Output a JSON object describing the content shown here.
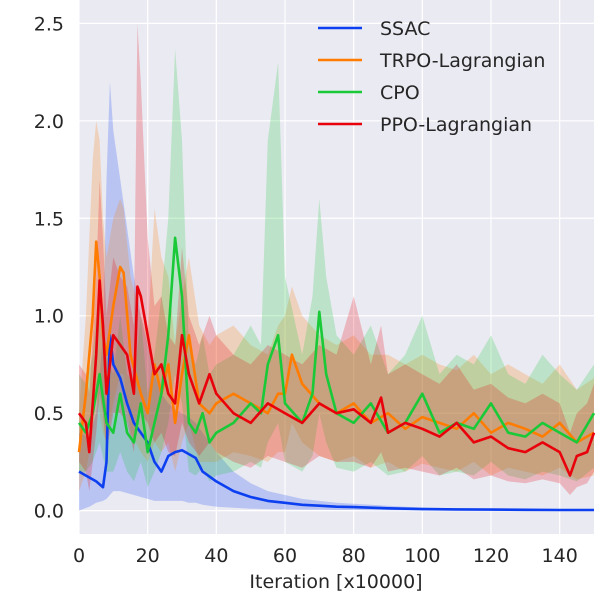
{
  "chart_data": {
    "type": "line",
    "title": "",
    "xlabel": "Iteration [x10000]",
    "ylabel": "",
    "xlim": [
      0,
      150
    ],
    "ylim": [
      -0.12,
      2.62
    ],
    "x_ticks": [
      "0",
      "20",
      "40",
      "60",
      "80",
      "100",
      "120",
      "140"
    ],
    "y_ticks": [
      "0.0",
      "0.5",
      "1.0",
      "1.5",
      "2.0",
      "2.5"
    ],
    "grid": true,
    "legend_position": "top-right",
    "background": "#eaeaf2",
    "series": [
      {
        "name": "SSAC",
        "color": "#0c3ff0",
        "x": [
          0,
          3,
          5,
          7,
          8,
          9,
          10,
          12,
          14,
          16,
          18,
          20,
          22,
          24,
          26,
          28,
          30,
          32,
          34,
          36,
          40,
          45,
          50,
          55,
          60,
          65,
          70,
          75,
          80,
          85,
          90,
          95,
          100,
          110,
          120,
          130,
          140,
          150
        ],
        "y": [
          0.2,
          0.17,
          0.15,
          0.12,
          0.25,
          0.9,
          0.75,
          0.68,
          0.55,
          0.45,
          0.4,
          0.35,
          0.25,
          0.2,
          0.28,
          0.3,
          0.31,
          0.29,
          0.27,
          0.2,
          0.15,
          0.1,
          0.07,
          0.05,
          0.04,
          0.03,
          0.025,
          0.02,
          0.018,
          0.015,
          0.012,
          0.01,
          0.008,
          0.006,
          0.005,
          0.004,
          0.003,
          0.003
        ],
        "upper": [
          0.4,
          0.38,
          0.5,
          0.9,
          1.7,
          2.2,
          1.95,
          1.7,
          1.45,
          1.2,
          1.0,
          0.85,
          0.7,
          0.6,
          0.55,
          0.52,
          0.5,
          0.48,
          0.45,
          0.4,
          0.3,
          0.2,
          0.14,
          0.1,
          0.08,
          0.06,
          0.05,
          0.04,
          0.035,
          0.03,
          0.025,
          0.02,
          0.016,
          0.012,
          0.01,
          0.008,
          0.007,
          0.006
        ],
        "lower": [
          0.0,
          0.02,
          0.04,
          0.05,
          0.06,
          0.08,
          0.1,
          0.1,
          0.09,
          0.08,
          0.07,
          0.06,
          0.05,
          0.05,
          0.05,
          0.05,
          0.05,
          0.04,
          0.04,
          0.03,
          0.02,
          0.015,
          0.01,
          0.008,
          0.006,
          0.005,
          0.004,
          0.003,
          0.003,
          0.002,
          0.002,
          0.001,
          0.001,
          0.001,
          0.0,
          0.0,
          0.0,
          0.0
        ]
      },
      {
        "name": "TRPO-Lagrangian",
        "color": "#ff7c00",
        "x": [
          0,
          2,
          4,
          5,
          6,
          7,
          8,
          10,
          12,
          13,
          15,
          18,
          20,
          22,
          24,
          26,
          28,
          30,
          32,
          35,
          38,
          40,
          45,
          50,
          55,
          58,
          60,
          62,
          65,
          70,
          75,
          80,
          85,
          90,
          95,
          100,
          105,
          110,
          115,
          120,
          125,
          130,
          135,
          140,
          145,
          150
        ],
        "y": [
          0.3,
          0.6,
          1.0,
          1.38,
          1.2,
          0.9,
          0.8,
          1.05,
          1.25,
          1.22,
          0.8,
          0.6,
          0.5,
          0.75,
          0.6,
          0.75,
          0.45,
          0.7,
          0.9,
          0.55,
          0.5,
          0.55,
          0.6,
          0.55,
          0.5,
          0.6,
          0.6,
          0.8,
          0.65,
          0.55,
          0.5,
          0.55,
          0.45,
          0.5,
          0.42,
          0.48,
          0.45,
          0.42,
          0.5,
          0.4,
          0.45,
          0.42,
          0.38,
          0.45,
          0.35,
          0.4
        ],
        "upper": [
          0.5,
          1.0,
          1.8,
          2.0,
          1.9,
          1.5,
          1.3,
          1.5,
          1.6,
          1.55,
          1.2,
          1.0,
          0.9,
          1.55,
          1.3,
          1.2,
          0.85,
          1.1,
          1.3,
          0.95,
          0.85,
          0.9,
          0.95,
          0.85,
          0.8,
          0.95,
          1.0,
          1.15,
          1.0,
          0.9,
          0.85,
          0.9,
          0.8,
          0.8,
          0.75,
          0.8,
          0.75,
          0.72,
          0.8,
          0.7,
          0.75,
          0.7,
          0.65,
          0.75,
          0.62,
          0.68
        ],
        "lower": [
          0.1,
          0.2,
          0.4,
          0.6,
          0.5,
          0.4,
          0.35,
          0.55,
          0.7,
          0.7,
          0.4,
          0.3,
          0.25,
          0.35,
          0.3,
          0.35,
          0.2,
          0.35,
          0.45,
          0.25,
          0.25,
          0.25,
          0.3,
          0.28,
          0.25,
          0.3,
          0.3,
          0.45,
          0.35,
          0.28,
          0.25,
          0.28,
          0.22,
          0.25,
          0.2,
          0.24,
          0.22,
          0.2,
          0.25,
          0.18,
          0.22,
          0.2,
          0.18,
          0.22,
          0.16,
          0.18
        ]
      },
      {
        "name": "CPO",
        "color": "#1ac938",
        "x": [
          0,
          2,
          4,
          6,
          8,
          10,
          12,
          14,
          16,
          18,
          20,
          22,
          24,
          26,
          28,
          30,
          32,
          34,
          36,
          38,
          40,
          45,
          50,
          53,
          55,
          58,
          60,
          65,
          68,
          70,
          72,
          75,
          80,
          85,
          90,
          95,
          100,
          105,
          110,
          115,
          120,
          125,
          130,
          135,
          140,
          145,
          150
        ],
        "y": [
          0.45,
          0.4,
          0.5,
          0.7,
          0.45,
          0.4,
          0.6,
          0.4,
          0.35,
          0.55,
          0.3,
          0.45,
          0.6,
          0.9,
          1.4,
          1.1,
          0.45,
          0.4,
          0.5,
          0.35,
          0.4,
          0.45,
          0.55,
          0.5,
          0.75,
          0.9,
          0.55,
          0.45,
          0.6,
          1.02,
          0.7,
          0.5,
          0.45,
          0.55,
          0.4,
          0.45,
          0.6,
          0.4,
          0.45,
          0.42,
          0.55,
          0.4,
          0.38,
          0.45,
          0.4,
          0.35,
          0.5
        ],
        "upper": [
          0.7,
          0.65,
          0.8,
          1.2,
          0.8,
          0.7,
          1.0,
          0.7,
          0.65,
          1.0,
          0.6,
          0.8,
          1.1,
          1.5,
          2.37,
          1.9,
          0.85,
          0.75,
          0.9,
          0.7,
          0.75,
          0.8,
          0.95,
          0.85,
          1.9,
          2.3,
          1.2,
          0.8,
          1.1,
          1.6,
          1.2,
          0.9,
          0.8,
          0.95,
          0.7,
          0.8,
          1.0,
          0.7,
          0.8,
          0.75,
          0.9,
          0.7,
          0.65,
          0.8,
          0.7,
          0.62,
          0.75
        ],
        "lower": [
          0.2,
          0.2,
          0.25,
          0.35,
          0.2,
          0.2,
          0.3,
          0.2,
          0.15,
          0.25,
          0.12,
          0.2,
          0.3,
          0.45,
          0.7,
          0.55,
          0.2,
          0.18,
          0.22,
          0.15,
          0.18,
          0.2,
          0.25,
          0.22,
          0.35,
          0.45,
          0.25,
          0.2,
          0.28,
          0.5,
          0.35,
          0.22,
          0.2,
          0.25,
          0.18,
          0.2,
          0.28,
          0.18,
          0.2,
          0.18,
          0.25,
          0.18,
          0.16,
          0.2,
          0.18,
          0.15,
          0.22
        ]
      },
      {
        "name": "PPO-Lagrangian",
        "color": "#e8000b",
        "x": [
          0,
          2,
          3,
          5,
          6,
          7,
          8,
          10,
          12,
          14,
          16,
          17,
          18,
          20,
          22,
          24,
          26,
          28,
          30,
          32,
          35,
          38,
          40,
          45,
          50,
          55,
          60,
          65,
          70,
          75,
          80,
          85,
          88,
          90,
          95,
          100,
          105,
          110,
          115,
          120,
          125,
          130,
          135,
          140,
          143,
          145,
          148,
          150
        ],
        "y": [
          0.5,
          0.45,
          0.3,
          0.8,
          1.18,
          0.95,
          0.6,
          0.9,
          0.85,
          0.8,
          0.6,
          1.15,
          1.1,
          0.9,
          0.7,
          0.75,
          0.6,
          0.55,
          0.9,
          0.7,
          0.55,
          0.7,
          0.6,
          0.5,
          0.45,
          0.55,
          0.5,
          0.45,
          0.55,
          0.5,
          0.52,
          0.45,
          0.58,
          0.4,
          0.45,
          0.42,
          0.38,
          0.45,
          0.35,
          0.38,
          0.32,
          0.3,
          0.35,
          0.3,
          0.18,
          0.28,
          0.3,
          0.4
        ],
        "upper": [
          0.75,
          0.7,
          0.6,
          1.2,
          1.7,
          1.4,
          1.0,
          1.3,
          1.2,
          1.15,
          0.95,
          2.5,
          2.2,
          1.4,
          1.05,
          1.1,
          0.9,
          0.85,
          1.35,
          1.0,
          0.85,
          1.0,
          0.9,
          0.8,
          0.75,
          0.85,
          0.8,
          0.75,
          0.85,
          0.8,
          1.1,
          0.75,
          0.95,
          0.7,
          0.75,
          0.7,
          0.65,
          0.75,
          0.62,
          0.65,
          0.58,
          0.55,
          0.6,
          0.55,
          0.4,
          0.5,
          0.55,
          0.65
        ],
        "lower": [
          0.25,
          0.2,
          0.1,
          0.4,
          0.6,
          0.5,
          0.3,
          0.5,
          0.5,
          0.45,
          0.3,
          0.5,
          0.5,
          0.45,
          0.35,
          0.4,
          0.3,
          0.28,
          0.45,
          0.35,
          0.28,
          0.35,
          0.3,
          0.25,
          0.22,
          0.28,
          0.25,
          0.22,
          0.28,
          0.25,
          0.25,
          0.22,
          0.3,
          0.2,
          0.22,
          0.2,
          0.18,
          0.22,
          0.16,
          0.18,
          0.15,
          0.14,
          0.16,
          0.14,
          0.08,
          0.12,
          0.14,
          0.2
        ]
      }
    ]
  }
}
